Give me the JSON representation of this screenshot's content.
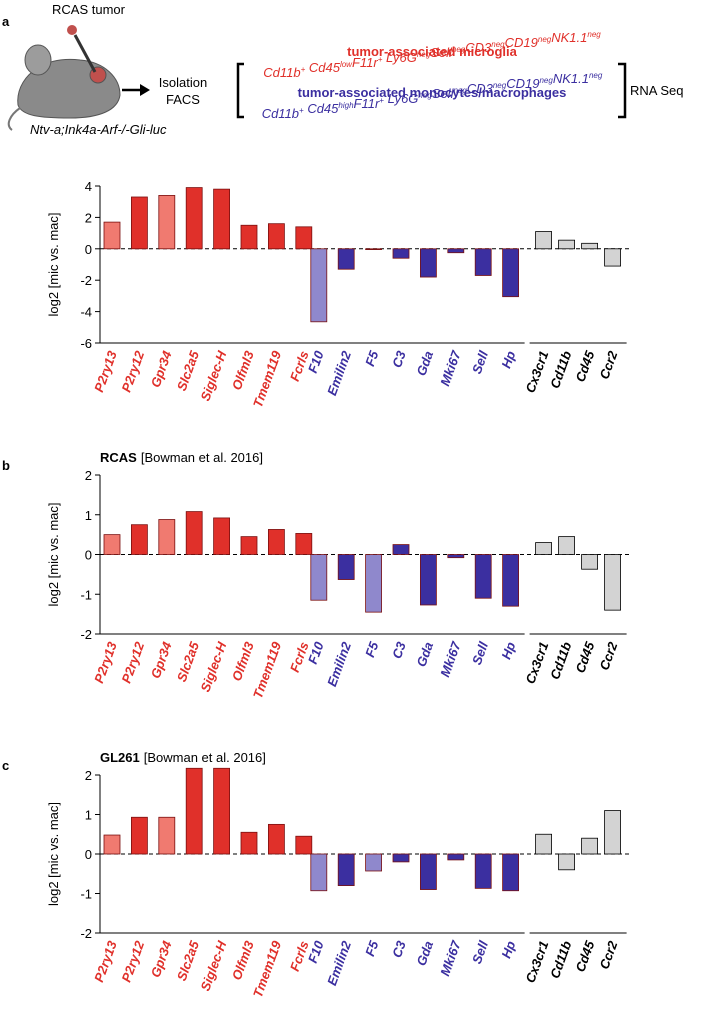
{
  "schematic": {
    "tumor_label": "RCAS tumor",
    "mouse_label": "Ntv-a;Ink4a-Arf-/-Gli-luc",
    "isolation": "Isolation",
    "facs": "FACS",
    "rna_seq": "RNA Seq",
    "microglia_title": "tumor-associated microglia",
    "microglia_markers": [
      {
        "text": "Cd11b",
        "sup": "+"
      },
      {
        "text": " Cd45",
        "sup": "low"
      },
      {
        "text": "F11r",
        "sup": "+"
      },
      {
        "text": " Ly6G",
        "sup": "neg"
      },
      {
        "text": "Sell",
        "sup": "neg"
      },
      {
        "text": "CD3",
        "sup": "neg"
      },
      {
        "text": "CD19",
        "sup": "neg"
      },
      {
        "text": "NK1.1",
        "sup": "neg"
      }
    ],
    "macrophage_title": "tumor-associated monocytes/macrophages",
    "macrophage_markers": [
      {
        "text": "Cd11b",
        "sup": "+"
      },
      {
        "text": " Cd45",
        "sup": "high"
      },
      {
        "text": "F11r",
        "sup": "+"
      },
      {
        "text": " Ly6G",
        "sup": "neg"
      },
      {
        "text": "Sell",
        "sup": "neg"
      },
      {
        "text": "CD3",
        "sup": "neg"
      },
      {
        "text": "CD19",
        "sup": "neg"
      },
      {
        "text": "NK1.1",
        "sup": "neg"
      }
    ]
  },
  "chart_data": [
    {
      "type": "bar",
      "panel": "a",
      "ylabel": "log2 [mic vs. mac]",
      "categories": [
        "P2ry13",
        "P2ry12",
        "Gpr34",
        "Slc2a5",
        "Siglec-H",
        "Olfml3",
        "Tmem119",
        "Fcrls",
        "F10",
        "Emilin2",
        "F5",
        "C3",
        "Gda",
        "Mki67",
        "Sell",
        "Hp",
        "Cx3cr1",
        "Cd11b",
        "Cd45",
        "Ccr2"
      ],
      "values": [
        1.7,
        3.3,
        3.4,
        3.9,
        3.8,
        1.5,
        1.6,
        1.4,
        -4.65,
        -1.3,
        -0.05,
        -0.6,
        -1.8,
        -0.25,
        -1.7,
        -3.05,
        1.1,
        0.55,
        0.35,
        -1.1
      ],
      "colors": [
        "#f07a70",
        "#e0302a",
        "#f07a70",
        "#e0302a",
        "#e0302a",
        "#e0302a",
        "#e0302a",
        "#e0302a",
        "#8f88cc",
        "#3b2fa0",
        "#3b2fa0",
        "#3b2fa0",
        "#3b2fa0",
        "#3b2fa0",
        "#3b2fa0",
        "#3b2fa0",
        "#d3d3d3",
        "#d3d3d3",
        "#d3d3d3",
        "#d3d3d3"
      ],
      "label_colors": [
        "#e0302a",
        "#3b2fa0",
        "#000000"
      ],
      "ylim": [
        -6,
        4
      ],
      "yticks": [
        -6,
        -4,
        -2,
        0,
        2,
        4
      ]
    },
    {
      "type": "bar",
      "panel": "b",
      "title": "RCAS",
      "subtitle": "[Bowman et al. 2016]",
      "ylabel": "log2 [mic vs. mac]",
      "categories": [
        "P2ry13",
        "P2ry12",
        "Gpr34",
        "Slc2a5",
        "Siglec-H",
        "Olfml3",
        "Tmem119",
        "Fcrls",
        "F10",
        "Emilin2",
        "F5",
        "C3",
        "Gda",
        "Mki67",
        "Sell",
        "Hp",
        "Cx3cr1",
        "Cd11b",
        "Cd45",
        "Ccr2"
      ],
      "values": [
        0.5,
        0.75,
        0.88,
        1.08,
        0.92,
        0.45,
        0.63,
        0.53,
        -1.15,
        -0.63,
        -1.45,
        0.25,
        -1.27,
        -0.08,
        -1.1,
        -1.3,
        0.3,
        0.45,
        -0.37,
        -1.4
      ],
      "colors": [
        "#f07a70",
        "#e0302a",
        "#f07a70",
        "#e0302a",
        "#e0302a",
        "#e0302a",
        "#e0302a",
        "#e0302a",
        "#8f88cc",
        "#3b2fa0",
        "#8f88cc",
        "#3b2fa0",
        "#3b2fa0",
        "#3b2fa0",
        "#3b2fa0",
        "#3b2fa0",
        "#d3d3d3",
        "#d3d3d3",
        "#d3d3d3",
        "#d3d3d3"
      ],
      "label_colors": [
        "#e0302a",
        "#3b2fa0",
        "#000000"
      ],
      "ylim": [
        -2,
        2
      ],
      "yticks": [
        -2,
        -1,
        0,
        1,
        2
      ]
    },
    {
      "type": "bar",
      "panel": "c",
      "title": "GL261",
      "subtitle": "[Bowman et al. 2016]",
      "ylabel": "log2 [mic vs. mac]",
      "categories": [
        "P2ry13",
        "P2ry12",
        "Gpr34",
        "Slc2a5",
        "Siglec-H",
        "Olfml3",
        "Tmem119",
        "Fcrls",
        "F10",
        "Emilin2",
        "F5",
        "C3",
        "Gda",
        "Mki67",
        "Sell",
        "Hp",
        "Cx3cr1",
        "Cd11b",
        "Cd45",
        "Ccr2"
      ],
      "values": [
        0.48,
        0.93,
        0.93,
        2.17,
        2.17,
        0.55,
        0.75,
        0.45,
        -0.93,
        -0.8,
        -0.43,
        -0.2,
        -0.9,
        -0.15,
        -0.87,
        -0.93,
        0.5,
        -0.4,
        0.4,
        1.1
      ],
      "colors": [
        "#f07a70",
        "#e0302a",
        "#f07a70",
        "#e0302a",
        "#e0302a",
        "#e0302a",
        "#e0302a",
        "#e0302a",
        "#8f88cc",
        "#3b2fa0",
        "#8f88cc",
        "#3b2fa0",
        "#3b2fa0",
        "#3b2fa0",
        "#3b2fa0",
        "#3b2fa0",
        "#d3d3d3",
        "#d3d3d3",
        "#d3d3d3",
        "#d3d3d3"
      ],
      "label_colors": [
        "#e0302a",
        "#3b2fa0",
        "#000000"
      ],
      "ylim": [
        -2,
        2
      ],
      "yticks": [
        -2,
        -1,
        0,
        1,
        2
      ]
    }
  ]
}
